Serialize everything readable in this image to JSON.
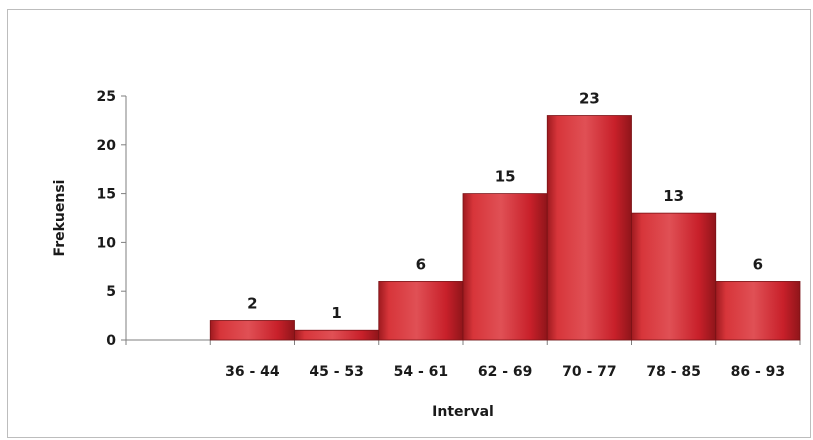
{
  "chart_data": {
    "type": "bar",
    "title": "",
    "xlabel": "Interval",
    "ylabel": "Frekuensi",
    "categories": [
      "",
      "36 - 44",
      "45 - 53",
      "54 - 61",
      "62 - 69",
      "70 - 77",
      "78 - 85",
      "86 - 93"
    ],
    "values": [
      0,
      2,
      1,
      6,
      15,
      23,
      13,
      6
    ],
    "data_labels": [
      "",
      "2",
      "1",
      "6",
      "15",
      "23",
      "13",
      "6"
    ],
    "y_ticks": [
      "0",
      "5",
      "10",
      "15",
      "20",
      "25"
    ],
    "ylim": [
      0,
      25
    ],
    "grid": false,
    "legend": "none",
    "bar_color": "#c8202a"
  }
}
